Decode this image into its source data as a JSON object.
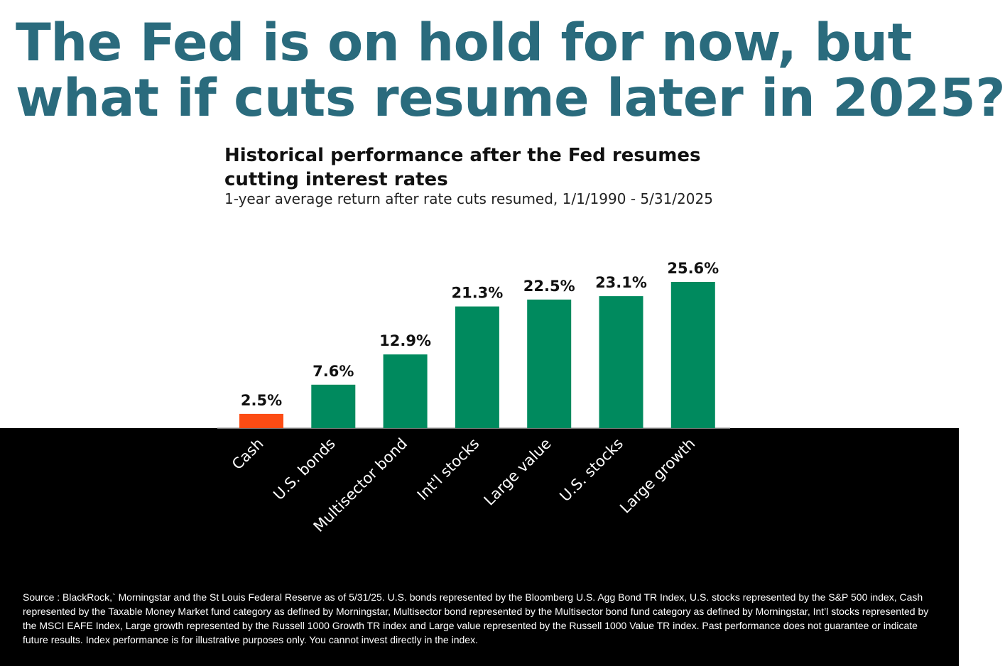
{
  "headline": {
    "line1": "The Fed is on hold for now, but",
    "line2": "what if cuts resume later in 2025?"
  },
  "chart_data": {
    "type": "bar",
    "title_line1": "Historical performance after the Fed resumes",
    "title_line2": "cutting interest rates",
    "subtitle": "1-year average return after rate cuts resumed, 1/1/1990 - 5/31/2025",
    "categories": [
      "Cash",
      "U.S. bonds",
      "Multisector bond",
      "Int'l stocks",
      "Large value",
      "U.S. stocks",
      "Large growth"
    ],
    "values": [
      2.5,
      7.6,
      12.9,
      21.3,
      22.5,
      23.1,
      25.6
    ],
    "value_labels": [
      "2.5%",
      "7.6%",
      "12.9%",
      "21.3%",
      "22.5%",
      "23.1%",
      "25.6%"
    ],
    "bar_colors": [
      "#fc4c14",
      "#008a5e",
      "#008a5e",
      "#008a5e",
      "#008a5e",
      "#008a5e",
      "#008a5e"
    ],
    "ylim": [
      0,
      25.6
    ],
    "xlabel": "",
    "ylabel": "",
    "grid": false,
    "legend": "none"
  },
  "source_note": "Source : BlackRock,` Morningstar and the St Louis Federal Reserve as of 5/31/25. U.S. bonds represented by the Bloomberg U.S. Agg Bond TR Index, U.S. stocks represented by the S&P 500 index, Cash represented by the Taxable Money Market fund category as defined by Morningstar, Multisector bond represented by the Multisector bond fund category as defined by Morningstar, Int’l stocks represented by the MSCI EAFE Index, Large growth represented by the Russell 1000 Growth TR index and Large value represented by the Russell 1000 Value TR index. Past performance does not guarantee or indicate future results. Index performance is for illustrative purposes only. You cannot invest directly in the index.",
  "colors": {
    "headline": "#2a6b7d",
    "background_top": "#ffffff",
    "background_bottom": "#000000"
  }
}
